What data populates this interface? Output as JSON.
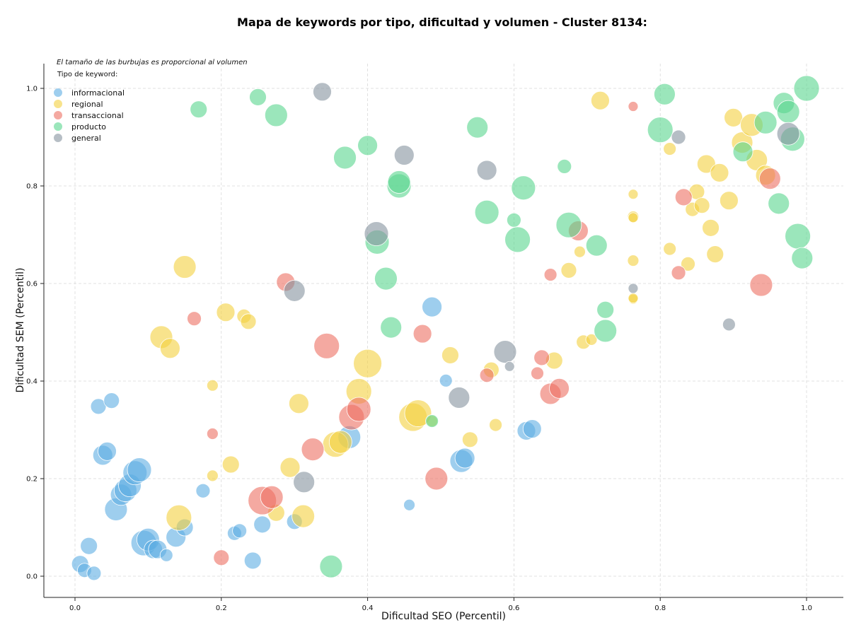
{
  "chart_data": {
    "type": "scatter",
    "title": "Mapa de keywords por tipo, dificultad y volumen - Cluster 8134:",
    "xlabel": "Dificultad SEO (Percentil)",
    "ylabel": "Dificultad SEM (Percentil)",
    "xlim": [
      -0.04,
      1.05
    ],
    "ylim": [
      -0.045,
      1.05
    ],
    "xticks": [
      "0.0",
      "0.2",
      "0.4",
      "0.6",
      "0.8",
      "1.0"
    ],
    "yticks": [
      "0.0",
      "0.2",
      "0.4",
      "0.6",
      "0.8",
      "1.0"
    ],
    "grid": true,
    "annotation": "El tamaño de las burbujas es proporcional al volumen",
    "legend_title": "Tipo de keyword:",
    "legend_position": "top-left",
    "series": [
      {
        "name": "informacional",
        "color": "#5DADE2",
        "points": [
          [
            0.007,
            0.025,
            12
          ],
          [
            0.013,
            0.012,
            10
          ],
          [
            0.019,
            0.062,
            12
          ],
          [
            0.026,
            0.006,
            10
          ],
          [
            0.032,
            0.348,
            11
          ],
          [
            0.038,
            0.248,
            14
          ],
          [
            0.044,
            0.256,
            13
          ],
          [
            0.05,
            0.36,
            11
          ],
          [
            0.056,
            0.137,
            16
          ],
          [
            0.063,
            0.167,
            15
          ],
          [
            0.069,
            0.176,
            16
          ],
          [
            0.075,
            0.186,
            16
          ],
          [
            0.082,
            0.212,
            17
          ],
          [
            0.088,
            0.218,
            17
          ],
          [
            0.094,
            0.068,
            18
          ],
          [
            0.1,
            0.075,
            16
          ],
          [
            0.107,
            0.055,
            13
          ],
          [
            0.113,
            0.055,
            13
          ],
          [
            0.125,
            0.043,
            9
          ],
          [
            0.138,
            0.08,
            14
          ],
          [
            0.15,
            0.1,
            12
          ],
          [
            0.175,
            0.175,
            10
          ],
          [
            0.218,
            0.088,
            10
          ],
          [
            0.225,
            0.093,
            10
          ],
          [
            0.243,
            0.032,
            12
          ],
          [
            0.256,
            0.106,
            12
          ],
          [
            0.3,
            0.112,
            11
          ],
          [
            0.375,
            0.285,
            16
          ],
          [
            0.457,
            0.146,
            8
          ],
          [
            0.488,
            0.552,
            14
          ],
          [
            0.507,
            0.401,
            9
          ],
          [
            0.528,
            0.236,
            16
          ],
          [
            0.533,
            0.242,
            14
          ],
          [
            0.617,
            0.298,
            13
          ],
          [
            0.625,
            0.302,
            13
          ]
        ]
      },
      {
        "name": "regional",
        "color": "#F4D03F",
        "points": [
          [
            0.118,
            0.49,
            16
          ],
          [
            0.13,
            0.467,
            14
          ],
          [
            0.15,
            0.634,
            16
          ],
          [
            0.142,
            0.12,
            18
          ],
          [
            0.188,
            0.391,
            8
          ],
          [
            0.188,
            0.206,
            8
          ],
          [
            0.213,
            0.229,
            12
          ],
          [
            0.206,
            0.541,
            13
          ],
          [
            0.231,
            0.533,
            10
          ],
          [
            0.237,
            0.522,
            11
          ],
          [
            0.275,
            0.13,
            12
          ],
          [
            0.294,
            0.223,
            14
          ],
          [
            0.306,
            0.354,
            14
          ],
          [
            0.312,
            0.123,
            16
          ],
          [
            0.356,
            0.27,
            18
          ],
          [
            0.363,
            0.275,
            16
          ],
          [
            0.388,
            0.379,
            18
          ],
          [
            0.4,
            0.436,
            20
          ],
          [
            0.462,
            0.326,
            20
          ],
          [
            0.469,
            0.334,
            19
          ],
          [
            0.488,
            0.318,
            8
          ],
          [
            0.513,
            0.453,
            12
          ],
          [
            0.54,
            0.28,
            11
          ],
          [
            0.569,
            0.423,
            11
          ],
          [
            0.575,
            0.31,
            9
          ],
          [
            0.655,
            0.442,
            12
          ],
          [
            0.675,
            0.627,
            11
          ],
          [
            0.69,
            0.665,
            8
          ],
          [
            0.695,
            0.48,
            10
          ],
          [
            0.706,
            0.485,
            8
          ],
          [
            0.718,
            0.975,
            13
          ],
          [
            0.763,
            0.783,
            7
          ],
          [
            0.763,
            0.737,
            8
          ],
          [
            0.763,
            0.735,
            7
          ],
          [
            0.763,
            0.647,
            8
          ],
          [
            0.763,
            0.568,
            7
          ],
          [
            0.763,
            0.57,
            7
          ],
          [
            0.813,
            0.876,
            9
          ],
          [
            0.813,
            0.671,
            9
          ],
          [
            0.838,
            0.64,
            10
          ],
          [
            0.844,
            0.752,
            10
          ],
          [
            0.85,
            0.788,
            11
          ],
          [
            0.857,
            0.76,
            11
          ],
          [
            0.863,
            0.845,
            13
          ],
          [
            0.869,
            0.714,
            12
          ],
          [
            0.875,
            0.66,
            12
          ],
          [
            0.881,
            0.827,
            13
          ],
          [
            0.894,
            0.77,
            13
          ],
          [
            0.9,
            0.94,
            13
          ],
          [
            0.912,
            0.889,
            15
          ],
          [
            0.925,
            0.925,
            16
          ],
          [
            0.932,
            0.853,
            15
          ],
          [
            0.944,
            0.822,
            14
          ]
        ]
      },
      {
        "name": "transaccional",
        "color": "#EC7063",
        "points": [
          [
            0.163,
            0.528,
            10
          ],
          [
            0.188,
            0.292,
            8
          ],
          [
            0.2,
            0.038,
            11
          ],
          [
            0.256,
            0.155,
            20
          ],
          [
            0.269,
            0.162,
            16
          ],
          [
            0.288,
            0.603,
            13
          ],
          [
            0.325,
            0.26,
            16
          ],
          [
            0.344,
            0.472,
            18
          ],
          [
            0.378,
            0.326,
            18
          ],
          [
            0.388,
            0.342,
            17
          ],
          [
            0.475,
            0.497,
            13
          ],
          [
            0.494,
            0.2,
            16
          ],
          [
            0.563,
            0.412,
            10
          ],
          [
            0.632,
            0.416,
            9
          ],
          [
            0.638,
            0.448,
            11
          ],
          [
            0.65,
            0.618,
            9
          ],
          [
            0.65,
            0.374,
            15
          ],
          [
            0.662,
            0.385,
            14
          ],
          [
            0.688,
            0.708,
            14
          ],
          [
            0.763,
            0.963,
            7
          ],
          [
            0.825,
            0.622,
            10
          ],
          [
            0.832,
            0.777,
            12
          ],
          [
            0.938,
            0.597,
            16
          ],
          [
            0.95,
            0.815,
            15
          ]
        ]
      },
      {
        "name": "producto",
        "color": "#58D68D",
        "points": [
          [
            0.169,
            0.957,
            12
          ],
          [
            0.25,
            0.982,
            12
          ],
          [
            0.275,
            0.945,
            16
          ],
          [
            0.35,
            0.02,
            16
          ],
          [
            0.369,
            0.858,
            16
          ],
          [
            0.4,
            0.883,
            14
          ],
          [
            0.413,
            0.685,
            17
          ],
          [
            0.425,
            0.61,
            16
          ],
          [
            0.432,
            0.51,
            15
          ],
          [
            0.443,
            0.8,
            17
          ],
          [
            0.443,
            0.808,
            16
          ],
          [
            0.488,
            0.318,
            9
          ],
          [
            0.55,
            0.92,
            15
          ],
          [
            0.563,
            0.746,
            17
          ],
          [
            0.6,
            0.73,
            10
          ],
          [
            0.605,
            0.69,
            18
          ],
          [
            0.613,
            0.796,
            17
          ],
          [
            0.669,
            0.84,
            10
          ],
          [
            0.675,
            0.72,
            18
          ],
          [
            0.713,
            0.678,
            15
          ],
          [
            0.725,
            0.546,
            12
          ],
          [
            0.725,
            0.503,
            16
          ],
          [
            0.806,
            0.988,
            15
          ],
          [
            0.8,
            0.915,
            18
          ],
          [
            0.913,
            0.87,
            14
          ],
          [
            0.944,
            0.93,
            16
          ],
          [
            0.962,
            0.764,
            15
          ],
          [
            0.969,
            0.97,
            15
          ],
          [
            0.975,
            0.952,
            16
          ],
          [
            0.981,
            0.896,
            17
          ],
          [
            0.988,
            0.697,
            18
          ],
          [
            0.994,
            0.652,
            15
          ],
          [
            1.0,
            1.0,
            18
          ]
        ]
      },
      {
        "name": "general",
        "color": "#85929E",
        "points": [
          [
            0.3,
            0.585,
            15
          ],
          [
            0.313,
            0.193,
            15
          ],
          [
            0.338,
            0.993,
            13
          ],
          [
            0.412,
            0.702,
            17
          ],
          [
            0.45,
            0.863,
            14
          ],
          [
            0.525,
            0.366,
            15
          ],
          [
            0.563,
            0.832,
            14
          ],
          [
            0.588,
            0.46,
            16
          ],
          [
            0.594,
            0.43,
            7
          ],
          [
            0.763,
            0.59,
            7
          ],
          [
            0.825,
            0.9,
            10
          ],
          [
            0.894,
            0.516,
            9
          ],
          [
            0.975,
            0.907,
            16
          ]
        ]
      }
    ]
  }
}
